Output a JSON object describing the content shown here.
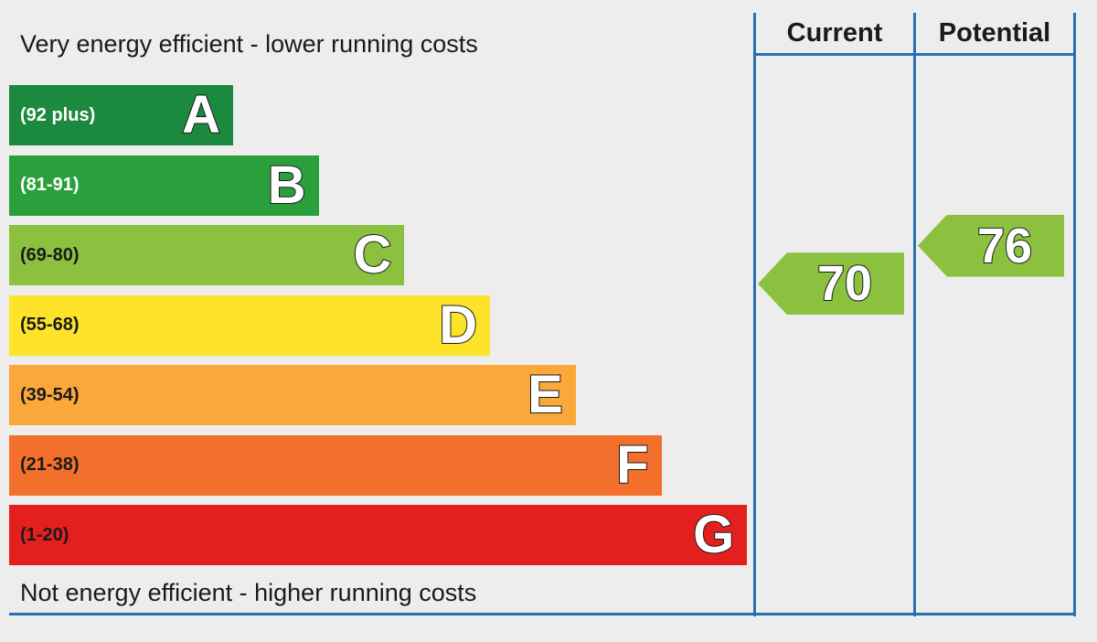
{
  "chart_data": {
    "type": "bar",
    "header_top": "Very energy efficient - lower running costs",
    "header_bottom": "Not energy efficient - higher running costs",
    "columns": [
      "Current",
      "Potential"
    ],
    "bands": [
      {
        "letter": "A",
        "range": "(92 plus)",
        "min": 92,
        "max": 100,
        "color": "#1b8a3e",
        "text_color": "#ffffff"
      },
      {
        "letter": "B",
        "range": "(81-91)",
        "min": 81,
        "max": 91,
        "color": "#2aa03c",
        "text_color": "#ffffff"
      },
      {
        "letter": "C",
        "range": "(69-80)",
        "min": 69,
        "max": 80,
        "color": "#8cc13f",
        "text_color": "#1a1a1a"
      },
      {
        "letter": "D",
        "range": "(55-68)",
        "min": 55,
        "max": 68,
        "color": "#fde42a",
        "text_color": "#1a1a1a"
      },
      {
        "letter": "E",
        "range": "(39-54)",
        "min": 39,
        "max": 54,
        "color": "#fba83a",
        "text_color": "#1a1a1a"
      },
      {
        "letter": "F",
        "range": "(21-38)",
        "min": 21,
        "max": 38,
        "color": "#f2702b",
        "text_color": "#1a1a1a"
      },
      {
        "letter": "G",
        "range": "(1-20)",
        "min": 1,
        "max": 20,
        "color": "#e4201f",
        "text_color": "#1a1a1a"
      }
    ],
    "current": {
      "value": 70,
      "band": "C",
      "color": "#8cc13f"
    },
    "potential": {
      "value": 76,
      "band": "C",
      "color": "#8cc13f"
    }
  }
}
